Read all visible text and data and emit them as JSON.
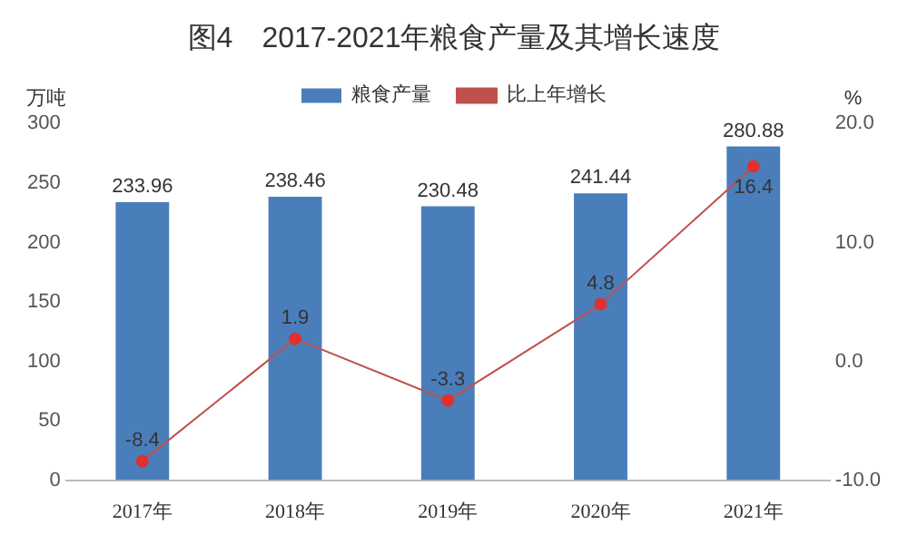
{
  "chart_data": {
    "type": "bar",
    "title": "图4　2017-2021年粮食产量及其增长速度",
    "ylabel": "万吨",
    "y2label": "%",
    "categories": [
      "2017年",
      "2018年",
      "2019年",
      "2020年",
      "2021年"
    ],
    "series": [
      {
        "name": "粮食产量",
        "color": "#4a7ebb",
        "values": [
          233.96,
          238.46,
          230.48,
          241.44,
          280.88
        ]
      },
      {
        "name": "比上年增长",
        "type": "line",
        "axis": "y2",
        "color": "#c0504d",
        "marker": "circle",
        "values": [
          -8.4,
          1.9,
          -3.3,
          4.8,
          16.4
        ]
      }
    ],
    "ylim": [
      0,
      300
    ],
    "yticks": [
      0,
      50,
      100,
      150,
      200,
      250,
      300
    ],
    "y2lim": [
      -10,
      20
    ],
    "y2ticks": [
      {
        "value": -10,
        "label": "-10.0"
      },
      {
        "value": 0,
        "label": "0.0"
      },
      {
        "value": 10,
        "label": "10.0"
      },
      {
        "value": 20,
        "label": "20.0"
      }
    ],
    "grid": false,
    "legend": "top",
    "data_labels": true
  }
}
